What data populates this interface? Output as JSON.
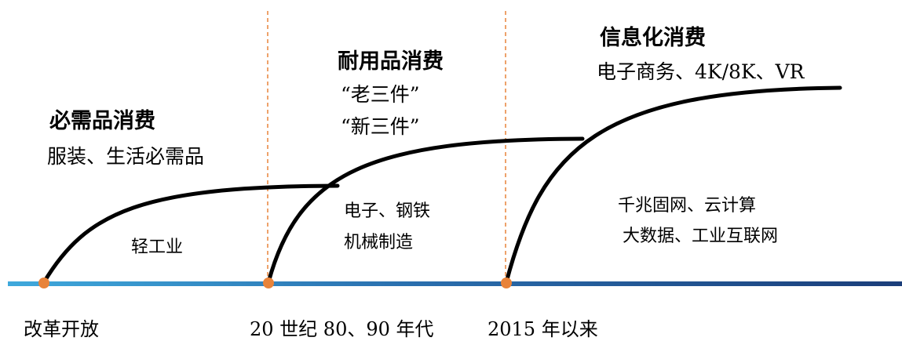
{
  "stages": [
    {
      "id": "stage-1",
      "title": "必需品消费",
      "lines": [
        "服装、生活必需品"
      ],
      "industry": [
        "轻工业"
      ],
      "period": "改革开放"
    },
    {
      "id": "stage-2",
      "title": "耐用品消费",
      "lines": [
        "“老三件”",
        "“新三件”"
      ],
      "industry": [
        "电子、钢铁",
        "机械制造"
      ],
      "period": "20 世纪 80、90 年代"
    },
    {
      "id": "stage-3",
      "title": "信息化消费",
      "lines": [
        "电子商务、4K/8K、VR"
      ],
      "industry": [
        "千兆固网、云计算",
        "大数据、工业互联网"
      ],
      "period": "2015 年以来"
    }
  ],
  "colors": {
    "axis_left": "#3fa9dc",
    "axis_right": "#1b3e7a",
    "marker": "#e8833a",
    "divider": "#e8833a",
    "curve": "#000000"
  }
}
